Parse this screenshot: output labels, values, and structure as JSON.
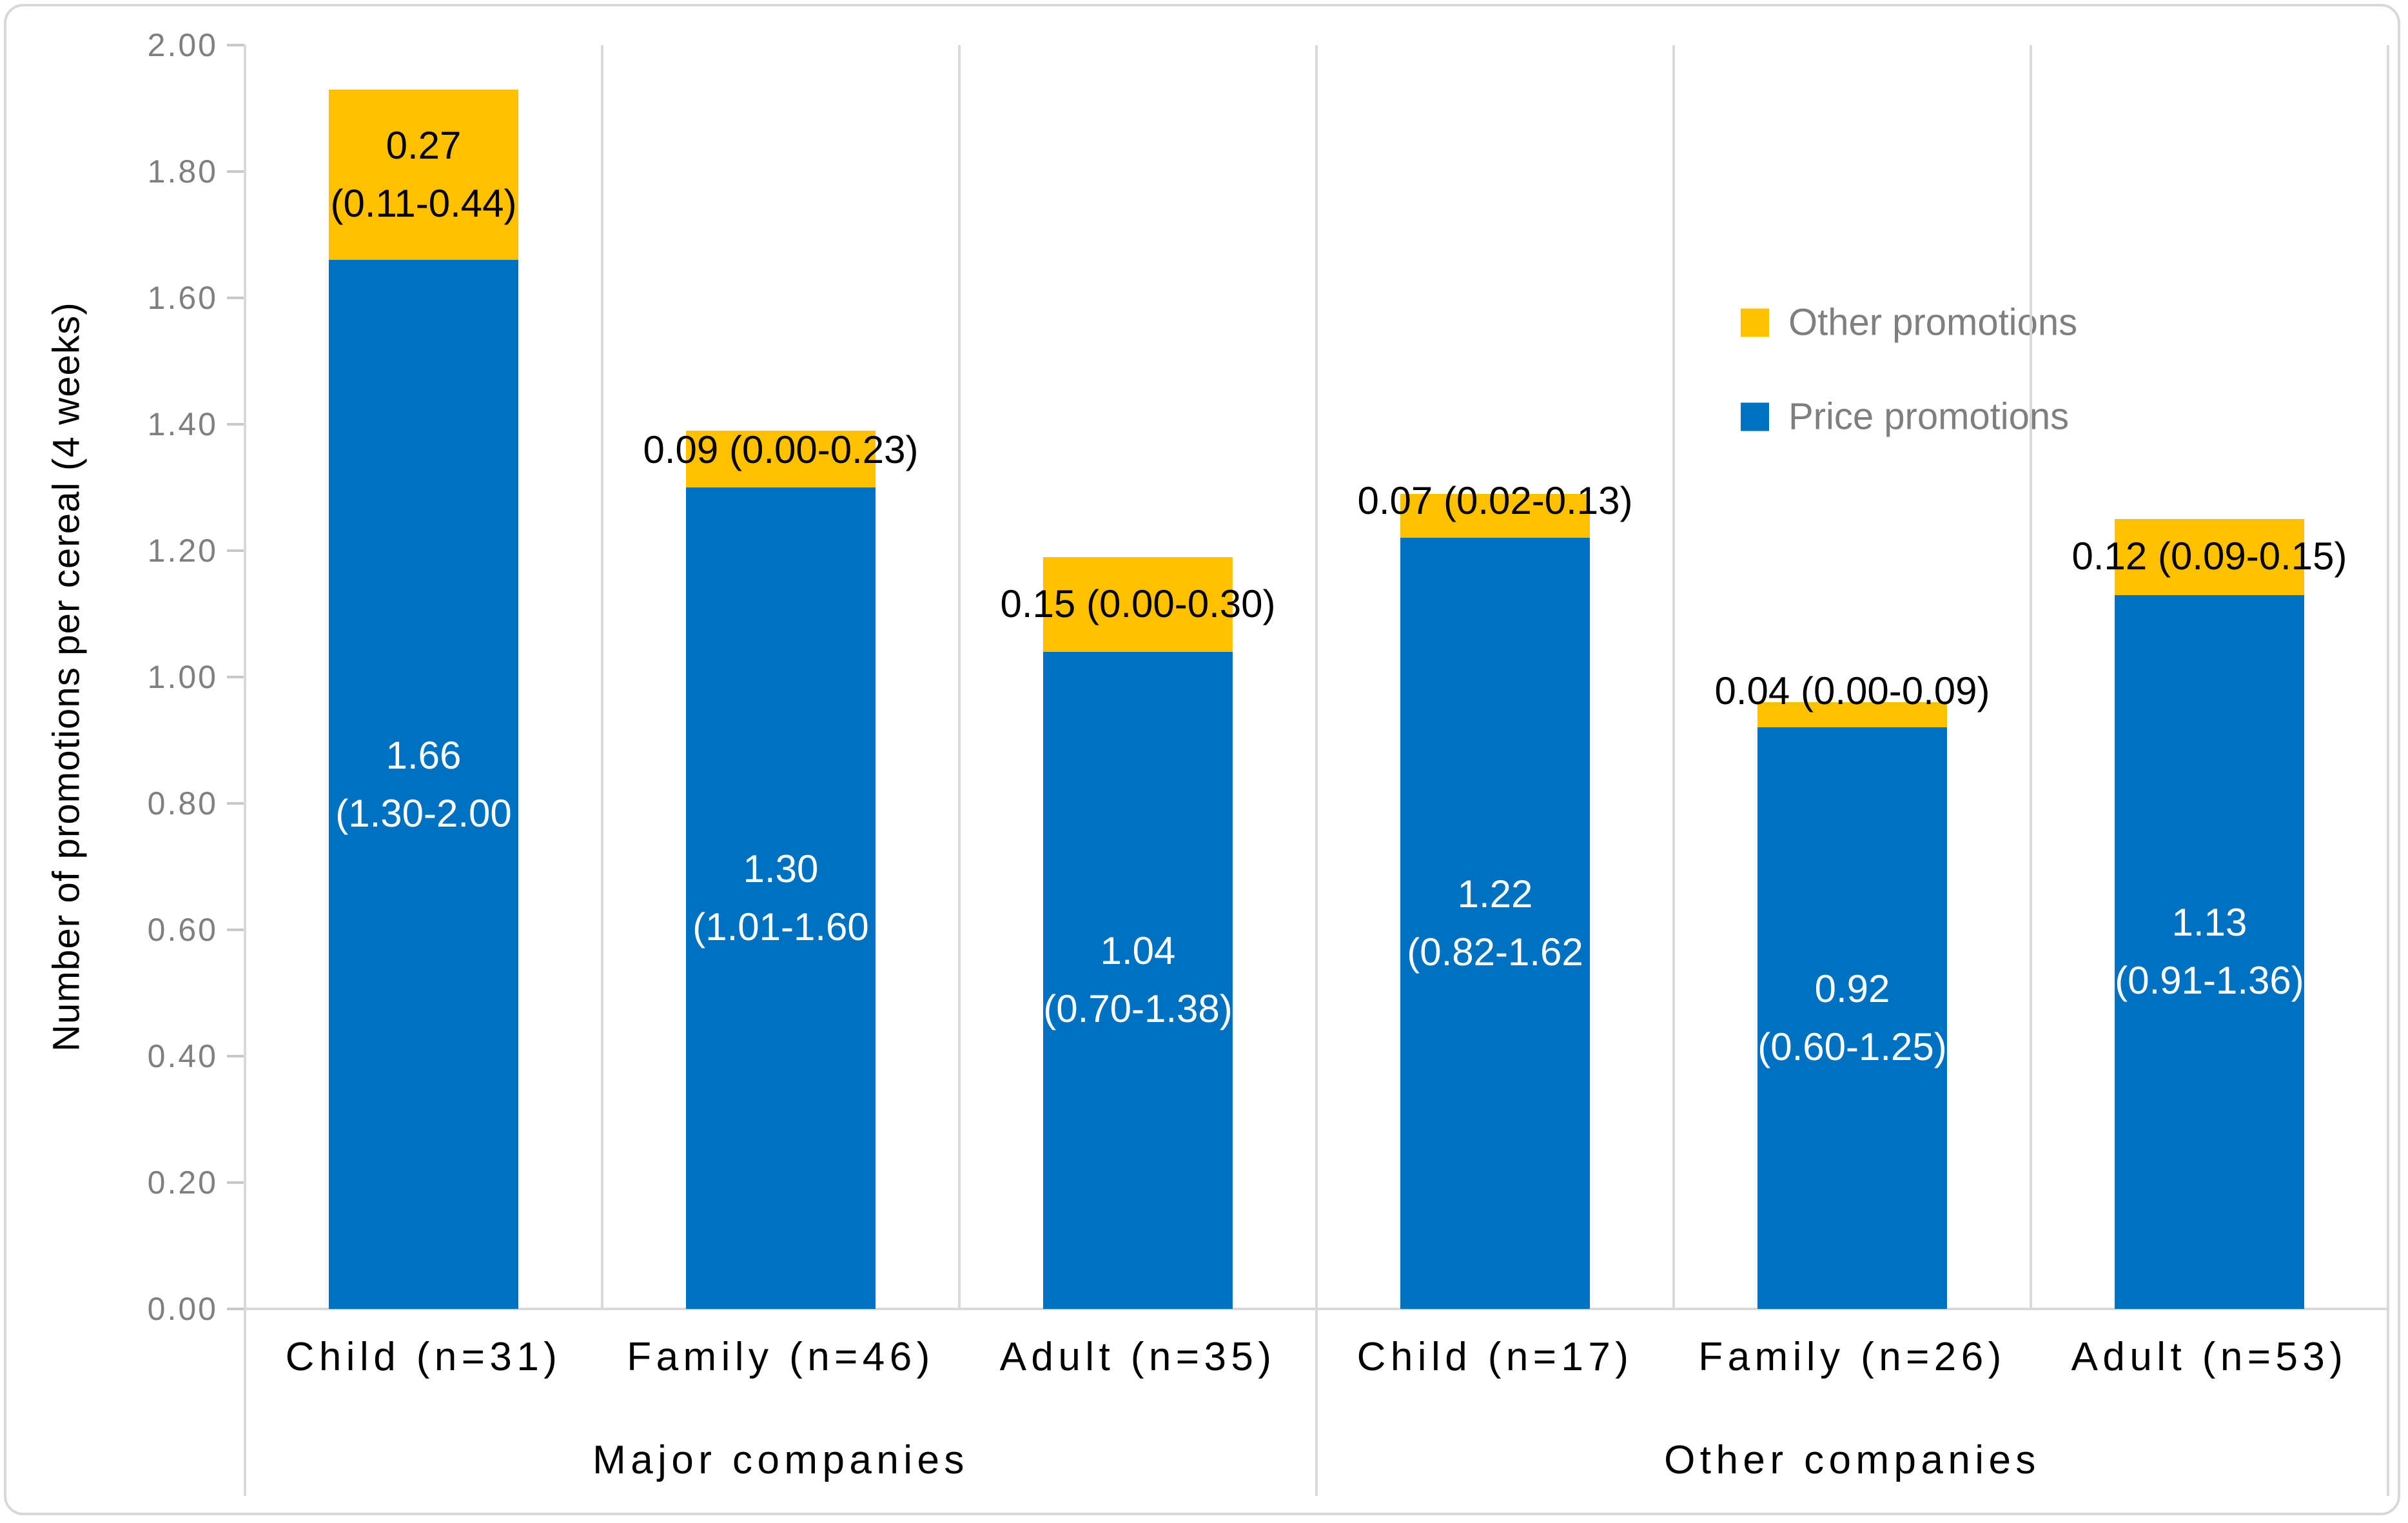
{
  "axis": {
    "y_title": "Number of promotions per cereal (4 weeks)",
    "y_ticks": [
      "0.00",
      "0.20",
      "0.40",
      "0.60",
      "0.80",
      "1.00",
      "1.20",
      "1.40",
      "1.60",
      "1.80",
      "2.00"
    ],
    "y_min": 0,
    "y_max": 2
  },
  "legend": {
    "items": [
      {
        "label": "Other promotions",
        "color": "#FFC000"
      },
      {
        "label": "Price promotions",
        "color": "#0070C0"
      }
    ]
  },
  "groups": [
    {
      "label": "Major companies"
    },
    {
      "label": "Other companies"
    }
  ],
  "bars": [
    {
      "group": "Major companies",
      "category": "Child (n=31)",
      "price_value": 1.66,
      "price_label": [
        "1.66",
        "(1.30-2.00"
      ],
      "other_value": 0.27,
      "other_label": [
        "0.27",
        "(0.11-0.44)"
      ]
    },
    {
      "group": "Major companies",
      "category": "Family (n=46)",
      "price_value": 1.3,
      "price_label": [
        "1.30",
        "(1.01-1.60"
      ],
      "other_value": 0.09,
      "other_label": [
        "0.09 (0.00-0.23)"
      ]
    },
    {
      "group": "Major companies",
      "category": "Adult (n=35)",
      "price_value": 1.04,
      "price_label": [
        "1.04",
        "(0.70-1.38)"
      ],
      "other_value": 0.15,
      "other_label": [
        "0.15 (0.00-0.30)"
      ]
    },
    {
      "group": "Other companies",
      "category": "Child (n=17)",
      "price_value": 1.22,
      "price_label": [
        "1.22",
        "(0.82-1.62"
      ],
      "other_value": 0.07,
      "other_label": [
        "0.07 (0.02-0.13)"
      ]
    },
    {
      "group": "Other companies",
      "category": "Family (n=26)",
      "price_value": 0.92,
      "price_label": [
        "0.92",
        "(0.60-1.25)"
      ],
      "other_value": 0.04,
      "other_label": [
        "0.04 (0.00-0.09)"
      ]
    },
    {
      "group": "Other companies",
      "category": "Adult (n=53)",
      "price_value": 1.13,
      "price_label": [
        "1.13",
        "(0.91-1.36)"
      ],
      "other_value": 0.12,
      "other_label": [
        "0.12 (0.09-0.15)"
      ]
    }
  ],
  "colors": {
    "price": "#0070C0",
    "other": "#FFC000",
    "axis_line": "#D9D9D9",
    "tick_label": "#7F7F7F",
    "legend_text": "#7F7F7F"
  },
  "chart_data": {
    "type": "bar",
    "stacked": true,
    "categories": [
      "Child (n=31)",
      "Family (n=46)",
      "Adult (n=35)",
      "Child (n=17)",
      "Family (n=26)",
      "Adult (n=53)"
    ],
    "category_groups": [
      "Major companies",
      "Major companies",
      "Major companies",
      "Other companies",
      "Other companies",
      "Other companies"
    ],
    "series": [
      {
        "name": "Price promotions",
        "color": "#0070C0",
        "values": [
          1.66,
          1.3,
          1.04,
          1.22,
          0.92,
          1.13
        ],
        "ci": [
          "1.30-2.00",
          "1.01-1.60",
          "0.70-1.38",
          "0.82-1.62",
          "0.60-1.25",
          "0.91-1.36"
        ]
      },
      {
        "name": "Other promotions",
        "color": "#FFC000",
        "values": [
          0.27,
          0.09,
          0.15,
          0.07,
          0.04,
          0.12
        ],
        "ci": [
          "0.11-0.44",
          "0.00-0.23",
          "0.00-0.30",
          "0.02-0.13",
          "0.00-0.09",
          "0.09-0.15"
        ]
      }
    ],
    "title": "",
    "xlabel": "",
    "ylabel": "Number of promotions per cereal (4 weeks)",
    "ylim": [
      0,
      2.0
    ],
    "ytick_step": 0.2,
    "grid": "off",
    "legend_position": "inside-upper-right"
  }
}
